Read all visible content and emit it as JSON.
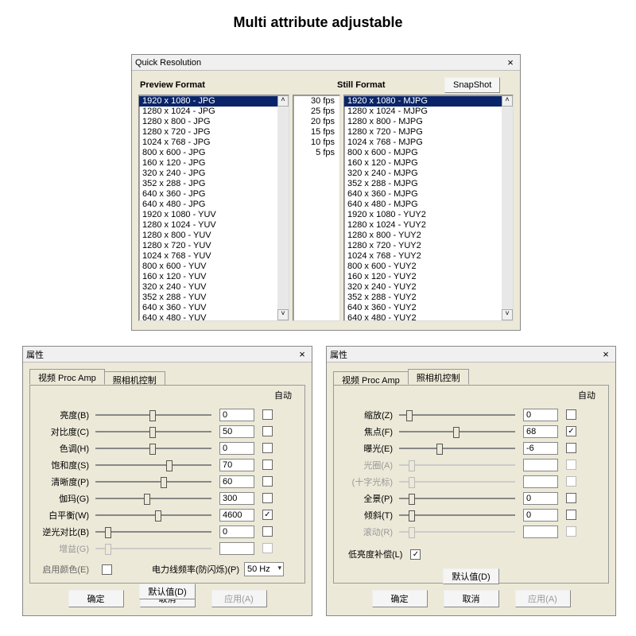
{
  "colors": {
    "win_bg": "#ece9d8",
    "list_bg": "#ffffff",
    "selection_bg": "#0a246a",
    "selection_fg": "#ffffff",
    "border": "#888888",
    "text": "#000000",
    "disabled_text": "#999999"
  },
  "title": "Multi attribute adjustable",
  "quick_resolution": {
    "window_title": "Quick Resolution",
    "preview_label": "Preview Format",
    "still_label": "Still Format",
    "snapshot_label": "SnapShot",
    "preview_selected_index": 0,
    "still_selected_index": 0,
    "preview_items": [
      "1920 x 1080 - JPG",
      "1280 x 1024 - JPG",
      "1280 x 800 - JPG",
      "1280 x 720 - JPG",
      "1024 x 768 - JPG",
      "800 x 600 - JPG",
      "160 x 120 - JPG",
      "320 x 240 - JPG",
      "352 x 288 - JPG",
      "640 x 360 - JPG",
      "640 x 480 - JPG",
      "1920 x 1080 - YUV",
      "1280 x 1024 - YUV",
      "1280 x 800 - YUV",
      "1280 x 720 - YUV",
      "1024 x 768 - YUV",
      "800 x 600 - YUV",
      "160 x 120 - YUV",
      "320 x 240 - YUV",
      "352 x 288 - YUV",
      "640 x 360 - YUV",
      "640 x 480 - YUV"
    ],
    "fps_items": [
      "30 fps",
      "25 fps",
      "20 fps",
      "15 fps",
      "10 fps",
      "5 fps"
    ],
    "still_items": [
      "1920 x 1080 - MJPG",
      "1280 x 1024 - MJPG",
      "1280 x 800 - MJPG",
      "1280 x 720 - MJPG",
      "1024 x 768 - MJPG",
      "800 x 600 - MJPG",
      "160 x 120 - MJPG",
      "320 x 240 - MJPG",
      "352 x 288 - MJPG",
      "640 x 360 - MJPG",
      "640 x 480 - MJPG",
      "1920 x 1080 - YUY2",
      "1280 x 1024 - YUY2",
      "1280 x 800 - YUY2",
      "1280 x 720 - YUY2",
      "1024 x 768 - YUY2",
      "800 x 600 - YUY2",
      "160 x 120 - YUY2",
      "320 x 240 - YUY2",
      "352 x 288 - YUY2",
      "640 x 360 - YUY2",
      "640 x 480 - YUY2"
    ]
  },
  "properties_common": {
    "window_title": "属性",
    "tab1": "视频 Proc Amp",
    "tab2": "照相机控制",
    "auto_label": "自动",
    "default_btn": "默认值(D)",
    "ok_btn": "确定",
    "cancel_btn": "取消",
    "apply_btn": "应用(A)"
  },
  "p1": {
    "rows": [
      {
        "label": "亮度(B)",
        "value": "0",
        "pos": 50,
        "auto": false,
        "enabled": true
      },
      {
        "label": "对比度(C)",
        "value": "50",
        "pos": 50,
        "auto": false,
        "enabled": true
      },
      {
        "label": "色调(H)",
        "value": "0",
        "pos": 50,
        "auto": false,
        "enabled": true
      },
      {
        "label": "饱和度(S)",
        "value": "70",
        "pos": 65,
        "auto": false,
        "enabled": true
      },
      {
        "label": "清晰度(P)",
        "value": "60",
        "pos": 60,
        "auto": false,
        "enabled": true
      },
      {
        "label": "伽玛(G)",
        "value": "300",
        "pos": 45,
        "auto": false,
        "enabled": true
      },
      {
        "label": "白平衡(W)",
        "value": "4600",
        "pos": 55,
        "auto": true,
        "enabled": true
      },
      {
        "label": "逆光对比(B)",
        "value": "0",
        "pos": 10,
        "auto": false,
        "enabled": true
      },
      {
        "label": "增益(G)",
        "value": "",
        "pos": 10,
        "auto": false,
        "enabled": false
      }
    ],
    "enable_color_label": "启用颜色(E)",
    "enable_color_checked": false,
    "powerline_label": "电力线频率(防闪烁)(P)",
    "powerline_value": "50 Hz"
  },
  "p2": {
    "rows": [
      {
        "label": "缩放(Z)",
        "value": "0",
        "pos": 8,
        "auto": false,
        "enabled": true
      },
      {
        "label": "焦点(F)",
        "value": "68",
        "pos": 50,
        "auto": true,
        "enabled": true
      },
      {
        "label": "曝光(E)",
        "value": "-6",
        "pos": 35,
        "auto": false,
        "enabled": true
      },
      {
        "label": "光圈(A)",
        "value": "",
        "pos": 10,
        "auto": false,
        "enabled": false
      },
      {
        "label": "(十字光标)",
        "value": "",
        "pos": 10,
        "auto": false,
        "enabled": false
      },
      {
        "label": "全景(P)",
        "value": "0",
        "pos": 10,
        "auto": false,
        "enabled": true
      },
      {
        "label": "倾斜(T)",
        "value": "0",
        "pos": 10,
        "auto": false,
        "enabled": true
      },
      {
        "label": "滚动(R)",
        "value": "",
        "pos": 10,
        "auto": false,
        "enabled": false
      }
    ],
    "lowlight_label": "低亮度补偿(L)",
    "lowlight_checked": true
  }
}
